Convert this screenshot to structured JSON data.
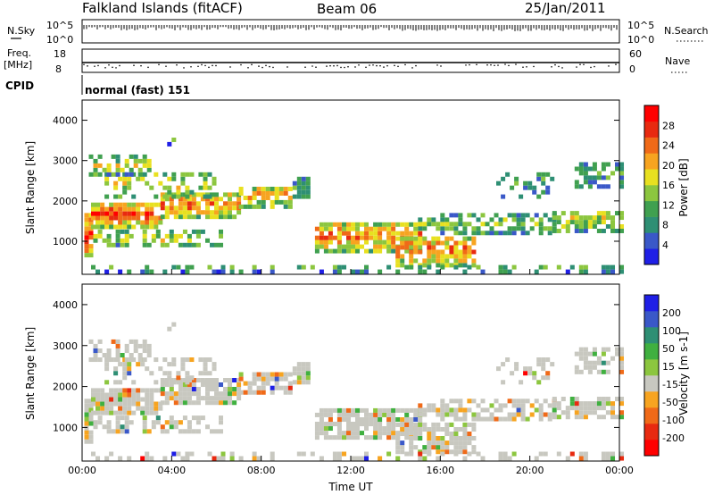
{
  "header": {
    "station": "Falkland Islands (fitACF)",
    "beam": "Beam 06",
    "date": "25/Jan/2011"
  },
  "strip_labels": {
    "nsky": "N.Sky",
    "nsky_ticks": [
      "10^5",
      "10^0"
    ],
    "nsearch": "N.Search",
    "nsearch_ticks": [
      "10^5",
      "10^0"
    ],
    "freq": "Freq.",
    "freq_unit": "[MHz]",
    "freq_ticks": [
      "18",
      "8"
    ],
    "nave": "Nave",
    "nave_ticks": [
      "60",
      "0"
    ],
    "cpid": "CPID",
    "cpid_text": "normal (fast) 151"
  },
  "chart_data": [
    {
      "type": "heatmap",
      "name": "power",
      "ylabel": "Slant Range [km]",
      "ylim": [
        180,
        4500
      ],
      "yticks": [
        1000,
        2000,
        3000,
        4000
      ],
      "xlim_hours": [
        0,
        24
      ],
      "xticks": [
        "00:00",
        "04:00",
        "08:00",
        "12:00",
        "16:00",
        "20:00",
        "00:00"
      ],
      "colorbar": {
        "label": "Power [dB]",
        "ticks": [
          "4",
          "8",
          "12",
          "16",
          "20",
          "24",
          "28"
        ],
        "colors": [
          "#1f1fe6",
          "#3a58c8",
          "#2e8f74",
          "#40a050",
          "#8cc63f",
          "#e8e020",
          "#f7a420",
          "#f06a18",
          "#e82a10",
          "#ff0000"
        ]
      }
    },
    {
      "type": "heatmap",
      "name": "velocity",
      "ylabel": "Slant Range [km]",
      "ylim": [
        180,
        4500
      ],
      "yticks": [
        1000,
        2000,
        3000,
        4000
      ],
      "xlim_hours": [
        0,
        24
      ],
      "xticks": [
        "00:00",
        "04:00",
        "08:00",
        "12:00",
        "16:00",
        "20:00",
        "00:00"
      ],
      "xlabel": "Time UT",
      "colorbar": {
        "label": "Velocity [m s-1]",
        "ticks": [
          "200",
          "100",
          "50",
          "15",
          "-15",
          "-50",
          "-100",
          "-200"
        ],
        "colors": [
          "#1f1fe6",
          "#3a58c8",
          "#2e8f74",
          "#40b040",
          "#8cc63f",
          "#c8c8c0",
          "#f7a420",
          "#f06a18",
          "#e82a10",
          "#ff0000"
        ]
      }
    }
  ]
}
